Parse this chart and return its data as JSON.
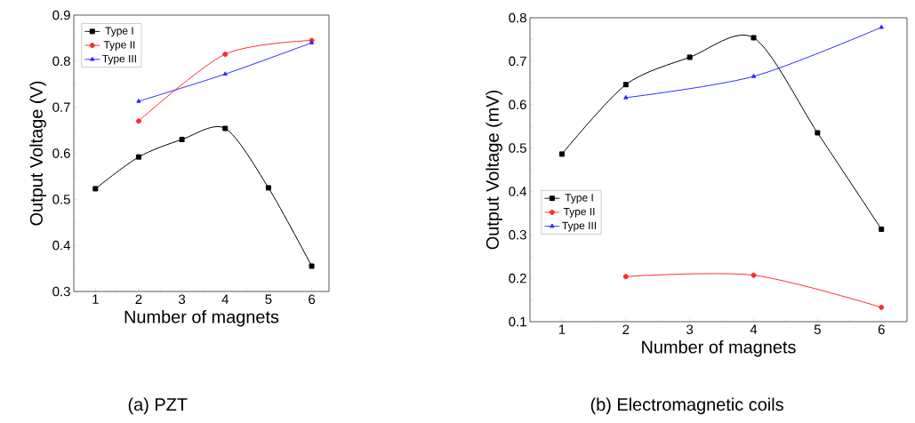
{
  "chart_data": [
    {
      "type": "line",
      "title": "(a) PZT",
      "xlabel": "Number of magnets",
      "ylabel": "Output Voltage (V)",
      "x": [
        1,
        2,
        3,
        4,
        5,
        6
      ],
      "xlim": [
        0.5,
        6.4
      ],
      "ylim": [
        0.3,
        0.9
      ],
      "xticks": [
        1,
        2,
        3,
        4,
        5,
        6
      ],
      "yticks": [
        0.3,
        0.4,
        0.5,
        0.6,
        0.7,
        0.8,
        0.9
      ],
      "legend": "top left",
      "line_style": "solid",
      "series": [
        {
          "name": "Type I",
          "color": "#000000",
          "marker": "square",
          "values": [
            0.523,
            0.592,
            0.63,
            0.654,
            0.525,
            0.355
          ]
        },
        {
          "name": "Type II",
          "color": "#ff2a2a",
          "marker": "circle",
          "values": [
            null,
            0.67,
            null,
            0.815,
            null,
            0.845
          ]
        },
        {
          "name": "Type III",
          "color": "#2a2aff",
          "marker": "triangle",
          "values": [
            null,
            0.713,
            null,
            0.772,
            null,
            0.84
          ]
        }
      ]
    },
    {
      "type": "line",
      "title": "(b) Electromagnetic coils",
      "xlabel": "Number of magnets",
      "ylabel": "Output Voltage (mV)",
      "x": [
        1,
        2,
        3,
        4,
        5,
        6
      ],
      "xlim": [
        0.5,
        6.4
      ],
      "ylim": [
        0.1,
        0.8
      ],
      "xticks": [
        1,
        2,
        3,
        4,
        5,
        6
      ],
      "yticks": [
        0.1,
        0.2,
        0.3,
        0.4,
        0.5,
        0.6,
        0.7,
        0.8
      ],
      "legend": "left",
      "line_style": "solid",
      "series": [
        {
          "name": "Type I",
          "color": "#000000",
          "marker": "square",
          "values": [
            0.486,
            0.646,
            0.709,
            0.754,
            0.535,
            0.313
          ]
        },
        {
          "name": "Type II",
          "color": "#ff2a2a",
          "marker": "circle",
          "values": [
            null,
            0.204,
            null,
            0.207,
            null,
            0.133
          ]
        },
        {
          "name": "Type III",
          "color": "#2a2aff",
          "marker": "triangle",
          "values": [
            null,
            0.616,
            null,
            0.665,
            null,
            0.778
          ]
        }
      ]
    }
  ]
}
